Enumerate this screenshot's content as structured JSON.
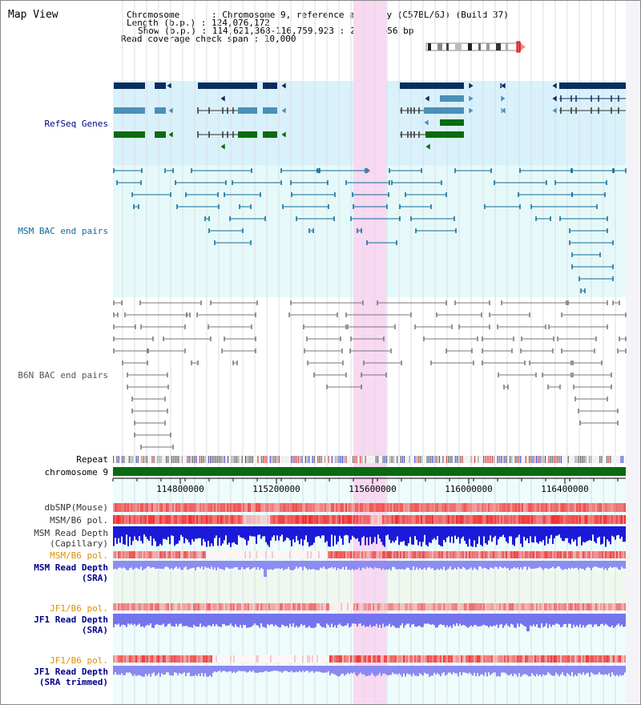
{
  "page": {
    "title": "Map View",
    "info": {
      "chromosome": "Chromosome      : Chromosome 9, reference assembly (C57BL/6J) (Build 37)",
      "length": "Length (b.p.) : 124,076,172",
      "show": "Show (b.p.) : 114,621,368-116,759,923 : 2,138,556 bp",
      "coverage": "Read coverage check span : 10,000"
    }
  },
  "tracks": {
    "refseq": "RefSeq Genes",
    "msm_bac": "MSM BAC end pairs",
    "b6n_bac": "B6N BAC end pairs",
    "repeat": "Repeat",
    "chromosome": "chromosome 9",
    "dbsnp": "dbSNP(Mouse)",
    "msm_b6_pol": "MSM/B6 pol.",
    "msm_depth_cap_1": "MSM Read Depth",
    "msm_depth_cap_2": "(Capillary)",
    "msm_b6_pol_2": "MSM/B6 pol.",
    "msm_depth_sra_1": "MSM Read Depth",
    "msm_depth_sra_2": "(SRA)",
    "jf1_b6_pol": "JF1/B6 pol.",
    "jf1_depth_sra_1": "JF1 Read Depth",
    "jf1_depth_sra_2": "(SRA)",
    "jf1_b6_pol_2": "JF1/B6 pol.",
    "jf1_depth_trim_1": "JF1 Read Depth",
    "jf1_depth_trim_2": "(SRA trimmed)"
  },
  "axis": {
    "ticks": [
      "114800000",
      "115200000",
      "115600000",
      "116000000",
      "116400000"
    ]
  },
  "colors": {
    "refseq_bg": "#d9f1fb",
    "msm_bg": "#e6f9f9",
    "highlight": "#f9d8f1",
    "navy": "#0b2d5e",
    "teal": "#4a90b8",
    "green": "#0a6b12",
    "bac_msm": "#0d6b96",
    "bac_b6n": "#777777",
    "label_blue": "#00008b",
    "label_orange": "#e09000",
    "label_dark": "#333333"
  }
}
